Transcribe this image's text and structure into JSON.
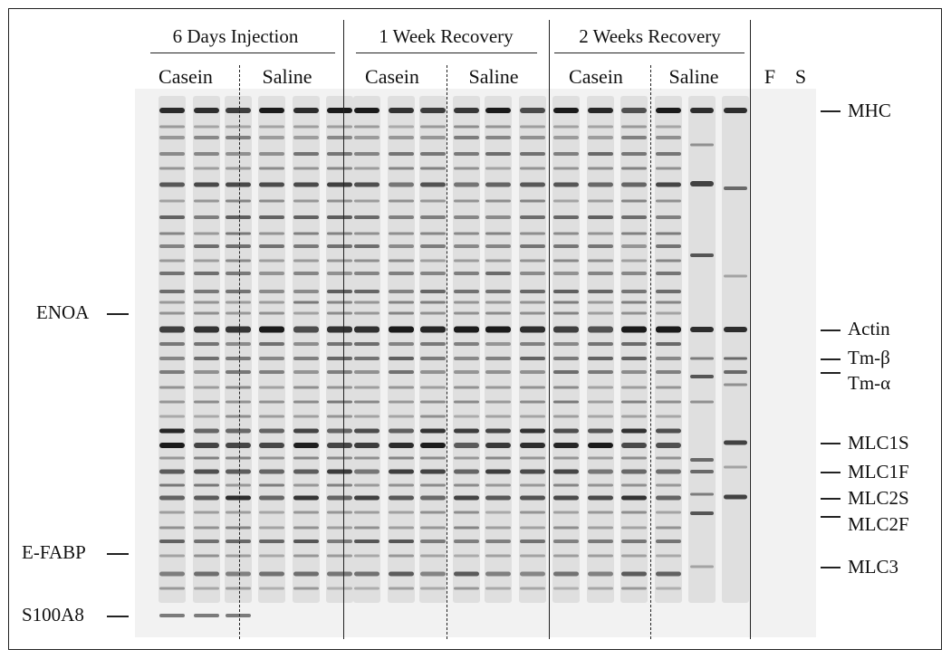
{
  "figure": {
    "groups": [
      {
        "label": "6 Days Injection"
      },
      {
        "label": "1 Week Recovery"
      },
      {
        "label": "2 Weeks Recovery"
      }
    ],
    "sublabels": {
      "g1_casein": "Casein",
      "g1_saline": "Saline",
      "g2_casein": "Casein",
      "g2_saline": "Saline",
      "g3_casein": "Casein",
      "g3_saline": "Saline",
      "f": "F",
      "s": "S"
    },
    "left_markers": {
      "enoa": "ENOA",
      "efabp": "E-FABP",
      "s100a8": "S100A8"
    },
    "right_markers": {
      "mhc": "MHC",
      "actin": "Actin",
      "tm_beta": "Tm-β",
      "tm_alpha": "Tm-α",
      "mlc1s": "MLC1S",
      "mlc1f": "MLC1F",
      "mlc2s": "MLC2S",
      "mlc2f": "MLC2F",
      "mlc3": "MLC3"
    }
  },
  "colors": {
    "background": "#f2f2f2",
    "band": "#1a1a1a",
    "text": "#111111"
  }
}
